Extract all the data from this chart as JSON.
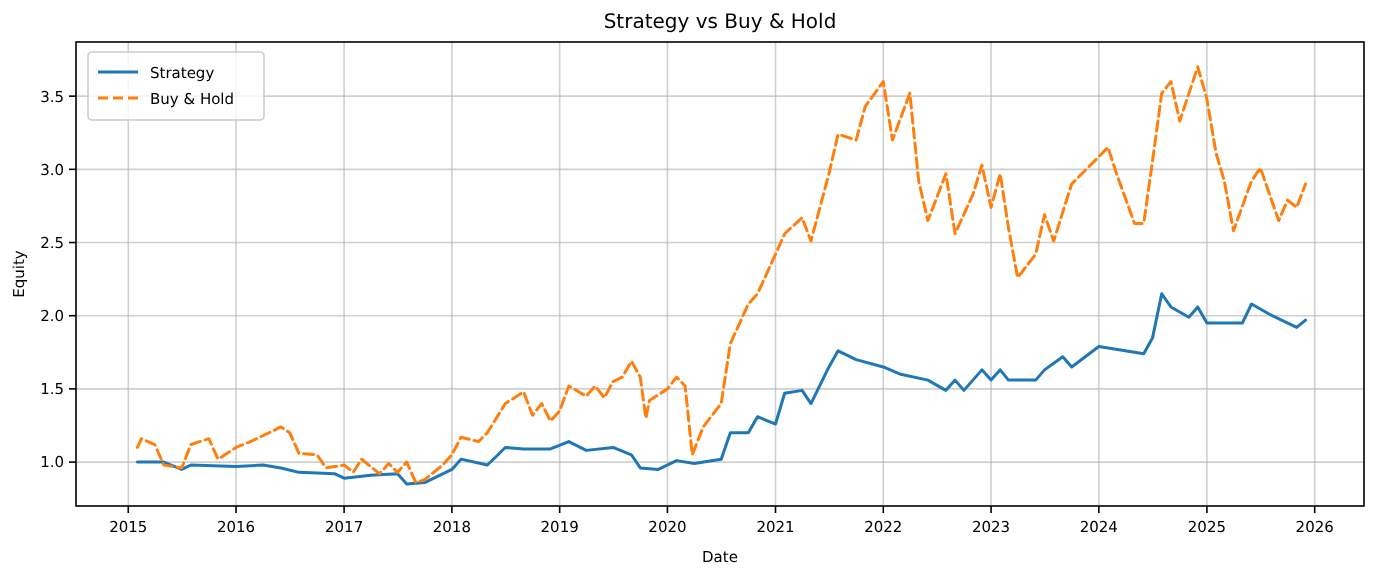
{
  "chart_data": {
    "type": "line",
    "title": "Strategy vs Buy & Hold",
    "xlabel": "Date",
    "ylabel": "Equity",
    "xlim": [
      "2014-07-08",
      "2026-06-17"
    ],
    "ylim": [
      0.7,
      3.87
    ],
    "xticks": [
      "2015",
      "2016",
      "2017",
      "2018",
      "2019",
      "2020",
      "2021",
      "2022",
      "2023",
      "2024",
      "2025",
      "2026"
    ],
    "yticks": [
      {
        "value": 1,
        "label": "1.0"
      },
      {
        "value": 1.5,
        "label": "1.5"
      },
      {
        "value": 2,
        "label": "2.0"
      },
      {
        "value": 2.5,
        "label": "2.5"
      },
      {
        "value": 3,
        "label": "3.0"
      },
      {
        "value": 3.5,
        "label": "3.5"
      }
    ],
    "grid": true,
    "legend": "top left",
    "marker": "none",
    "series": [
      {
        "name": "Strategy",
        "color": "#1f77b4",
        "line_style": "solid",
        "x": [
          "2015-02",
          "2015-05",
          "2015-07",
          "2015-08",
          "2016-01",
          "2016-04",
          "2016-06",
          "2016-08",
          "2016-12",
          "2017-01",
          "2017-04",
          "2017-07",
          "2017-08",
          "2017-10",
          "2018-01",
          "2018-02",
          "2018-05",
          "2018-06",
          "2018-07",
          "2018-09",
          "2018-12",
          "2019-02",
          "2019-04",
          "2019-07",
          "2019-09",
          "2019-10",
          "2019-12",
          "2020-02",
          "2020-04",
          "2020-07",
          "2020-08",
          "2020-10",
          "2020-11",
          "2021-01",
          "2021-02",
          "2021-04",
          "2021-05",
          "2021-07",
          "2021-08",
          "2021-10",
          "2022-01",
          "2022-03",
          "2022-06",
          "2022-08",
          "2022-09",
          "2022-10",
          "2022-12",
          "2023-01",
          "2023-02",
          "2023-03",
          "2023-06",
          "2023-07",
          "2023-09",
          "2023-10",
          "2024-01",
          "2024-06",
          "2024-07",
          "2024-08",
          "2024-09",
          "2024-11",
          "2024-12",
          "2025-01",
          "2025-05",
          "2025-06",
          "2025-08",
          "2025-11",
          "2025-12"
        ],
        "values": [
          1.0,
          1.0,
          0.95,
          0.98,
          0.97,
          0.98,
          0.96,
          0.93,
          0.92,
          0.89,
          0.91,
          0.92,
          0.85,
          0.86,
          0.95,
          1.02,
          0.98,
          1.04,
          1.1,
          1.09,
          1.09,
          1.14,
          1.08,
          1.1,
          1.05,
          0.96,
          0.95,
          1.01,
          0.99,
          1.02,
          1.2,
          1.2,
          1.31,
          1.26,
          1.47,
          1.49,
          1.4,
          1.65,
          1.76,
          1.7,
          1.65,
          1.6,
          1.56,
          1.49,
          1.56,
          1.49,
          1.63,
          1.56,
          1.63,
          1.56,
          1.56,
          1.63,
          1.72,
          1.65,
          1.79,
          1.74,
          1.85,
          2.15,
          2.06,
          1.99,
          2.06,
          1.95,
          1.95,
          2.08,
          2.01,
          1.92,
          1.97
        ]
      },
      {
        "name": "Buy & Hold",
        "color": "#ff7f0e",
        "line_style": "dashed",
        "x": [
          "2015-02",
          "2015-02-15",
          "2015-04",
          "2015-05",
          "2015-07",
          "2015-08",
          "2015-10",
          "2015-11",
          "2016-01",
          "2016-03",
          "2016-06",
          "2016-07",
          "2016-08",
          "2016-10",
          "2016-11",
          "2017-01",
          "2017-02",
          "2017-03",
          "2017-05",
          "2017-06",
          "2017-07",
          "2017-08",
          "2017-09",
          "2017-10",
          "2017-12",
          "2018-01",
          "2018-02",
          "2018-04",
          "2018-05",
          "2018-07",
          "2018-09",
          "2018-10",
          "2018-11",
          "2018-12",
          "2019-01",
          "2019-02",
          "2019-04",
          "2019-05",
          "2019-06",
          "2019-07",
          "2019-08",
          "2019-09",
          "2019-10",
          "2019-10-20",
          "2019-11",
          "2020-01",
          "2020-02",
          "2020-03",
          "2020-03-25",
          "2020-05",
          "2020-07",
          "2020-08",
          "2020-10",
          "2020-11",
          "2021-01",
          "2021-02",
          "2021-04",
          "2021-05",
          "2021-07",
          "2021-08",
          "2021-10",
          "2021-11",
          "2022-01",
          "2022-02",
          "2022-04",
          "2022-05",
          "2022-06",
          "2022-08",
          "2022-09",
          "2022-11",
          "2022-12",
          "2023-01",
          "2023-02",
          "2023-03",
          "2023-04",
          "2023-06",
          "2023-07",
          "2023-08",
          "2023-10",
          "2024-02",
          "2024-03",
          "2024-05",
          "2024-06",
          "2024-07",
          "2024-08",
          "2024-09",
          "2024-10",
          "2024-12",
          "2025-01",
          "2025-02",
          "2025-03",
          "2025-04",
          "2025-06",
          "2025-07",
          "2025-09",
          "2025-10",
          "2025-11",
          "2025-12"
        ],
        "values": [
          1.1,
          1.16,
          1.12,
          0.98,
          0.96,
          1.12,
          1.16,
          1.02,
          1.1,
          1.15,
          1.24,
          1.2,
          1.06,
          1.05,
          0.96,
          0.98,
          0.93,
          1.02,
          0.92,
          0.99,
          0.93,
          1.0,
          0.86,
          0.88,
          0.98,
          1.05,
          1.17,
          1.14,
          1.2,
          1.4,
          1.48,
          1.32,
          1.4,
          1.28,
          1.35,
          1.52,
          1.45,
          1.52,
          1.44,
          1.55,
          1.58,
          1.69,
          1.58,
          1.3,
          1.42,
          1.5,
          1.58,
          1.52,
          1.05,
          1.24,
          1.4,
          1.81,
          2.08,
          2.15,
          2.42,
          2.56,
          2.67,
          2.51,
          2.97,
          3.24,
          3.2,
          3.43,
          3.6,
          3.2,
          3.52,
          2.92,
          2.65,
          2.97,
          2.56,
          2.83,
          3.03,
          2.74,
          2.97,
          2.6,
          2.26,
          2.42,
          2.69,
          2.51,
          2.9,
          3.15,
          2.97,
          2.63,
          2.63,
          3.06,
          3.52,
          3.6,
          3.33,
          3.7,
          3.48,
          3.11,
          2.92,
          2.58,
          2.92,
          3.01,
          2.65,
          2.79,
          2.74,
          2.9
        ]
      }
    ]
  }
}
